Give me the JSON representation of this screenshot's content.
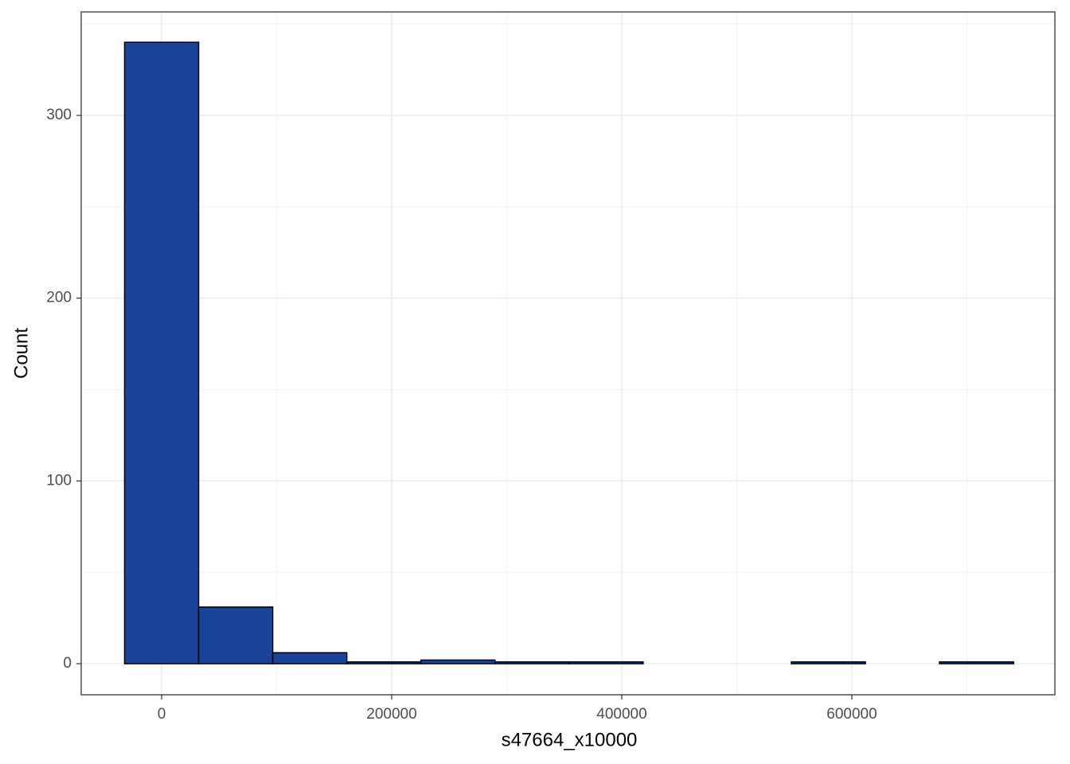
{
  "chart_data": {
    "type": "histogram",
    "x_label": "s47664_x10000",
    "y_label": "Count",
    "bins": [
      -32200,
      32200,
      96600,
      161000,
      225400,
      289800,
      354200,
      418600,
      483000,
      547400,
      611800,
      676200,
      740600
    ],
    "counts": [
      340,
      31,
      6,
      1,
      2,
      1,
      1,
      0,
      0,
      1,
      0,
      1
    ],
    "color": "#1a4499",
    "edgecolor": "#000000",
    "xlim": [
      -69900,
      776500
    ],
    "xticks": [
      0,
      200000,
      400000,
      600000
    ],
    "ylim": [
      -17,
      356.6
    ],
    "yticks": [
      0,
      100,
      200,
      300
    ],
    "grid": true
  }
}
